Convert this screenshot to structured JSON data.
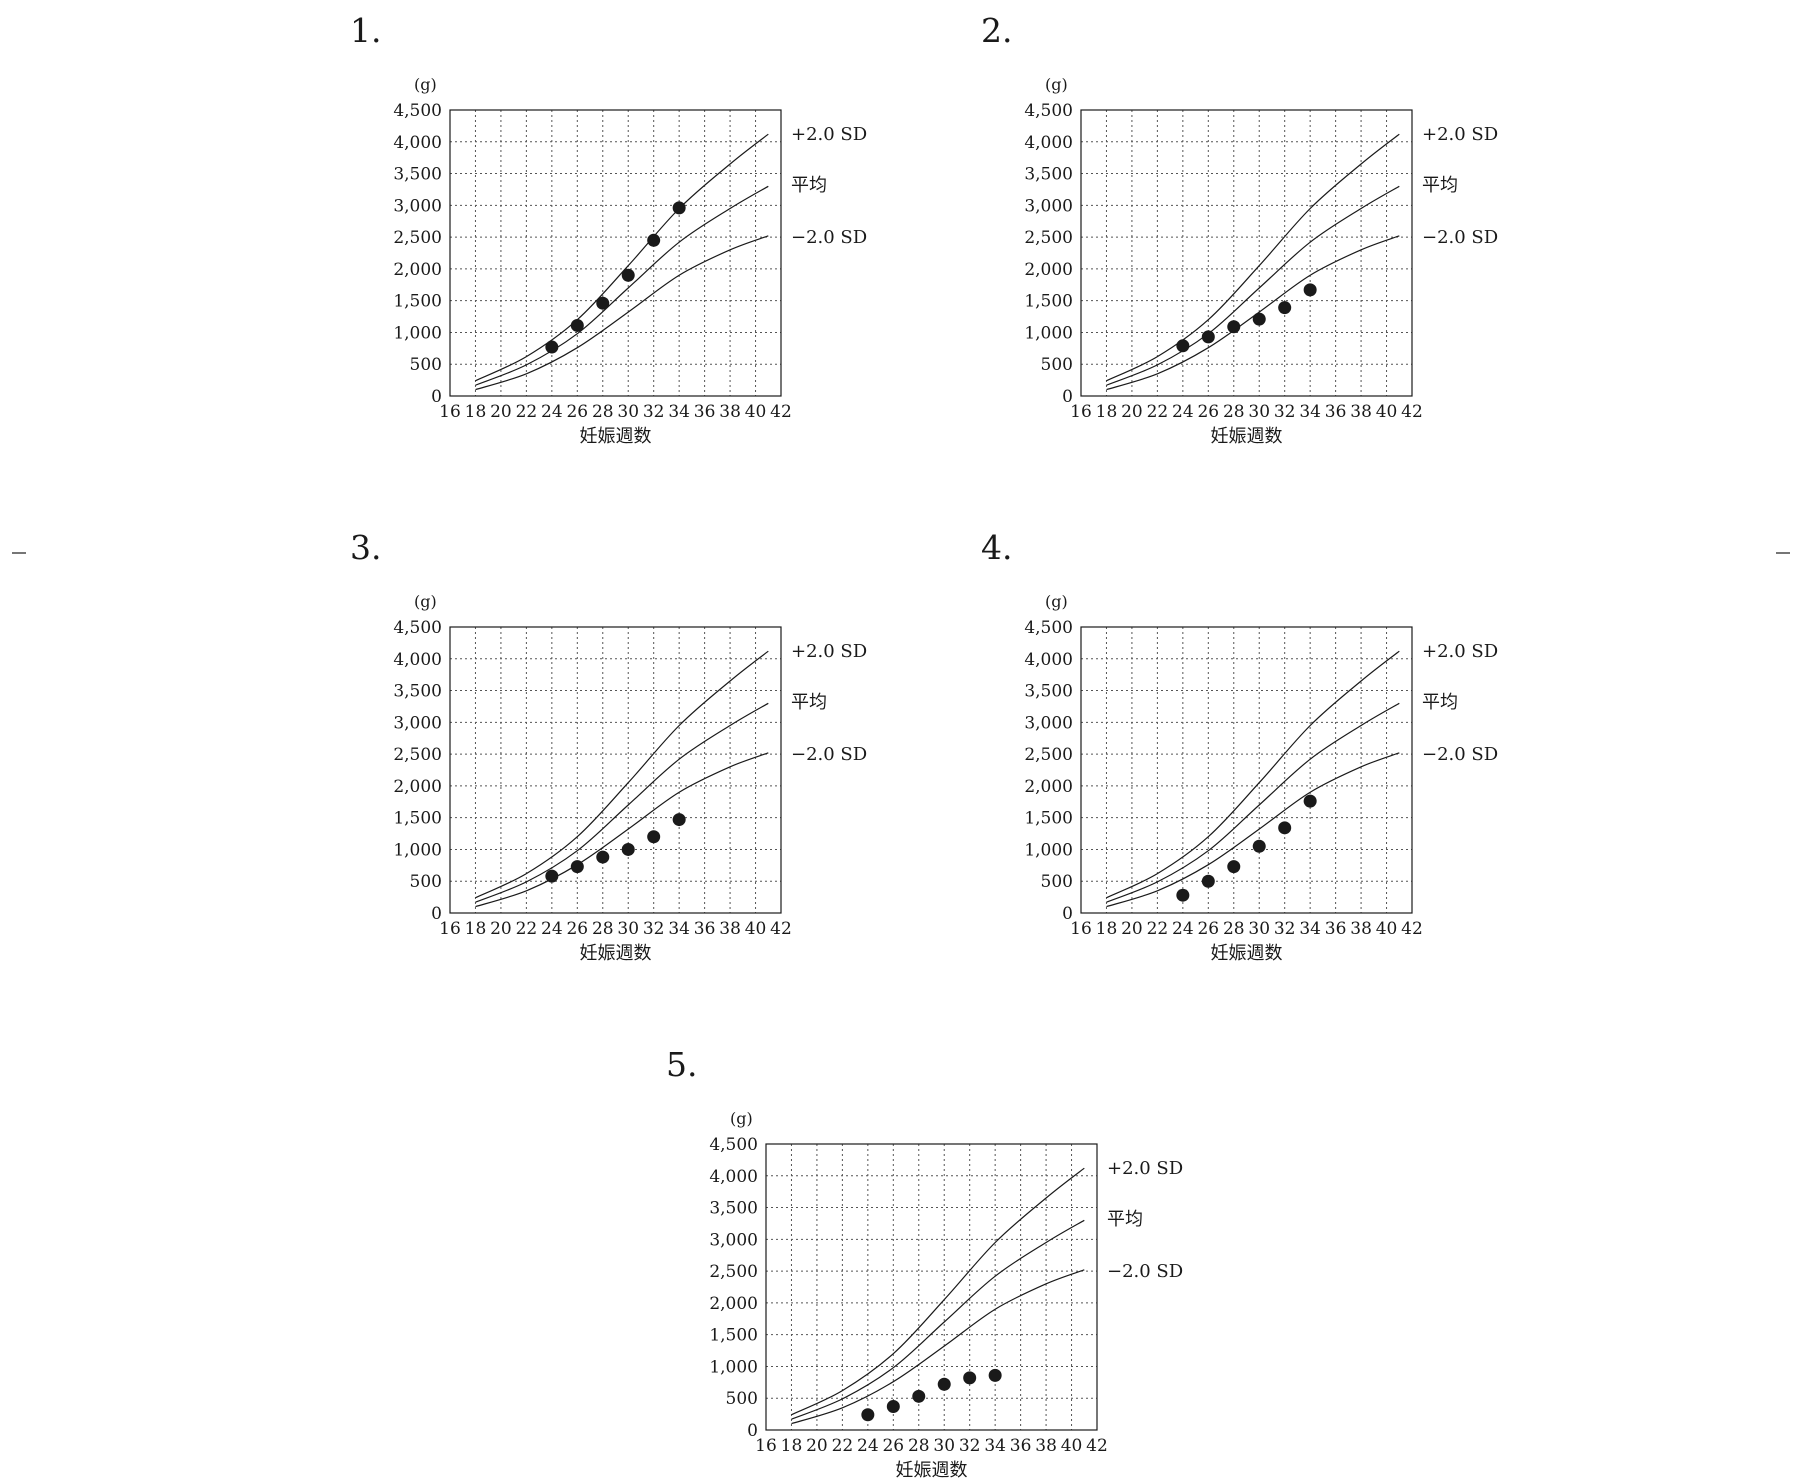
{
  "chart_data": [
    {
      "type": "scatter",
      "option_number": "1.",
      "unit_label": "(g)",
      "xlabel": "妊娠週数",
      "x_ticks": [
        16,
        18,
        20,
        22,
        24,
        26,
        28,
        30,
        32,
        34,
        36,
        38,
        40,
        42
      ],
      "y_ticks": [
        0,
        500,
        1000,
        1500,
        2000,
        2500,
        3000,
        3500,
        4000,
        4500
      ],
      "y_tick_labels": [
        "0",
        "500",
        "1,000",
        "1,500",
        "2,000",
        "2,500",
        "3,000",
        "3,500",
        "4,000",
        "4,500"
      ],
      "xlim": [
        16,
        42
      ],
      "ylim": [
        0,
        4500
      ],
      "grid": true,
      "reference_curves": [
        {
          "label": "+2.0 SD",
          "x": [
            18,
            22,
            26,
            30,
            34,
            38,
            41
          ],
          "y": [
            240,
            620,
            1200,
            2050,
            2950,
            3650,
            4120
          ]
        },
        {
          "label": "平均",
          "x": [
            18,
            22,
            26,
            30,
            34,
            38,
            41
          ],
          "y": [
            170,
            490,
            980,
            1700,
            2420,
            2950,
            3300
          ]
        },
        {
          "label": "−2.0 SD",
          "x": [
            18,
            22,
            26,
            30,
            34,
            38,
            41
          ],
          "y": [
            100,
            350,
            760,
            1320,
            1900,
            2300,
            2520
          ]
        }
      ],
      "points": {
        "x": [
          24,
          26,
          28,
          30,
          32,
          34
        ],
        "y": [
          770,
          1110,
          1460,
          1900,
          2450,
          2960
        ]
      }
    },
    {
      "type": "scatter",
      "option_number": "2.",
      "unit_label": "(g)",
      "xlabel": "妊娠週数",
      "x_ticks": [
        16,
        18,
        20,
        22,
        24,
        26,
        28,
        30,
        32,
        34,
        36,
        38,
        40,
        42
      ],
      "y_ticks": [
        0,
        500,
        1000,
        1500,
        2000,
        2500,
        3000,
        3500,
        4000,
        4500
      ],
      "y_tick_labels": [
        "0",
        "500",
        "1,000",
        "1,500",
        "2,000",
        "2,500",
        "3,000",
        "3,500",
        "4,000",
        "4,500"
      ],
      "xlim": [
        16,
        42
      ],
      "ylim": [
        0,
        4500
      ],
      "grid": true,
      "reference_curves": [
        {
          "label": "+2.0 SD",
          "x": [
            18,
            22,
            26,
            30,
            34,
            38,
            41
          ],
          "y": [
            240,
            620,
            1200,
            2050,
            2950,
            3650,
            4120
          ]
        },
        {
          "label": "平均",
          "x": [
            18,
            22,
            26,
            30,
            34,
            38,
            41
          ],
          "y": [
            170,
            490,
            980,
            1700,
            2420,
            2950,
            3300
          ]
        },
        {
          "label": "−2.0 SD",
          "x": [
            18,
            22,
            26,
            30,
            34,
            38,
            41
          ],
          "y": [
            100,
            350,
            760,
            1320,
            1900,
            2300,
            2520
          ]
        }
      ],
      "points": {
        "x": [
          24,
          26,
          28,
          30,
          32,
          34
        ],
        "y": [
          790,
          930,
          1090,
          1210,
          1390,
          1670
        ]
      }
    },
    {
      "type": "scatter",
      "option_number": "3.",
      "unit_label": "(g)",
      "xlabel": "妊娠週数",
      "x_ticks": [
        16,
        18,
        20,
        22,
        24,
        26,
        28,
        30,
        32,
        34,
        36,
        38,
        40,
        42
      ],
      "y_ticks": [
        0,
        500,
        1000,
        1500,
        2000,
        2500,
        3000,
        3500,
        4000,
        4500
      ],
      "y_tick_labels": [
        "0",
        "500",
        "1,000",
        "1,500",
        "2,000",
        "2,500",
        "3,000",
        "3,500",
        "4,000",
        "4,500"
      ],
      "xlim": [
        16,
        42
      ],
      "ylim": [
        0,
        4500
      ],
      "grid": true,
      "reference_curves": [
        {
          "label": "+2.0 SD",
          "x": [
            18,
            22,
            26,
            30,
            34,
            38,
            41
          ],
          "y": [
            240,
            620,
            1200,
            2050,
            2950,
            3650,
            4120
          ]
        },
        {
          "label": "平均",
          "x": [
            18,
            22,
            26,
            30,
            34,
            38,
            41
          ],
          "y": [
            170,
            490,
            980,
            1700,
            2420,
            2950,
            3300
          ]
        },
        {
          "label": "−2.0 SD",
          "x": [
            18,
            22,
            26,
            30,
            34,
            38,
            41
          ],
          "y": [
            100,
            350,
            760,
            1320,
            1900,
            2300,
            2520
          ]
        }
      ],
      "points": {
        "x": [
          24,
          26,
          28,
          30,
          32,
          34
        ],
        "y": [
          580,
          730,
          880,
          1000,
          1200,
          1470
        ]
      }
    },
    {
      "type": "scatter",
      "option_number": "4.",
      "unit_label": "(g)",
      "xlabel": "妊娠週数",
      "x_ticks": [
        16,
        18,
        20,
        22,
        24,
        26,
        28,
        30,
        32,
        34,
        36,
        38,
        40,
        42
      ],
      "y_ticks": [
        0,
        500,
        1000,
        1500,
        2000,
        2500,
        3000,
        3500,
        4000,
        4500
      ],
      "y_tick_labels": [
        "0",
        "500",
        "1,000",
        "1,500",
        "2,000",
        "2,500",
        "3,000",
        "3,500",
        "4,000",
        "4,500"
      ],
      "xlim": [
        16,
        42
      ],
      "ylim": [
        0,
        4500
      ],
      "grid": true,
      "reference_curves": [
        {
          "label": "+2.0 SD",
          "x": [
            18,
            22,
            26,
            30,
            34,
            38,
            41
          ],
          "y": [
            240,
            620,
            1200,
            2050,
            2950,
            3650,
            4120
          ]
        },
        {
          "label": "平均",
          "x": [
            18,
            22,
            26,
            30,
            34,
            38,
            41
          ],
          "y": [
            170,
            490,
            980,
            1700,
            2420,
            2950,
            3300
          ]
        },
        {
          "label": "−2.0 SD",
          "x": [
            18,
            22,
            26,
            30,
            34,
            38,
            41
          ],
          "y": [
            100,
            350,
            760,
            1320,
            1900,
            2300,
            2520
          ]
        }
      ],
      "points": {
        "x": [
          24,
          26,
          28,
          30,
          32,
          34
        ],
        "y": [
          280,
          500,
          730,
          1050,
          1340,
          1760
        ]
      }
    },
    {
      "type": "scatter",
      "option_number": "5.",
      "unit_label": "(g)",
      "xlabel": "妊娠週数",
      "x_ticks": [
        16,
        18,
        20,
        22,
        24,
        26,
        28,
        30,
        32,
        34,
        36,
        38,
        40,
        42
      ],
      "y_ticks": [
        0,
        500,
        1000,
        1500,
        2000,
        2500,
        3000,
        3500,
        4000,
        4500
      ],
      "y_tick_labels": [
        "0",
        "500",
        "1,000",
        "1,500",
        "2,000",
        "2,500",
        "3,000",
        "3,500",
        "4,000",
        "4,500"
      ],
      "xlim": [
        16,
        42
      ],
      "ylim": [
        0,
        4500
      ],
      "grid": true,
      "reference_curves": [
        {
          "label": "+2.0 SD",
          "x": [
            18,
            22,
            26,
            30,
            34,
            38,
            41
          ],
          "y": [
            240,
            620,
            1200,
            2050,
            2950,
            3650,
            4120
          ]
        },
        {
          "label": "平均",
          "x": [
            18,
            22,
            26,
            30,
            34,
            38,
            41
          ],
          "y": [
            170,
            490,
            980,
            1700,
            2420,
            2950,
            3300
          ]
        },
        {
          "label": "−2.0 SD",
          "x": [
            18,
            22,
            26,
            30,
            34,
            38,
            41
          ],
          "y": [
            100,
            350,
            760,
            1320,
            1900,
            2300,
            2520
          ]
        }
      ],
      "points": {
        "x": [
          24,
          26,
          28,
          30,
          32,
          34
        ],
        "y": [
          240,
          370,
          530,
          720,
          820,
          860
        ]
      }
    }
  ]
}
